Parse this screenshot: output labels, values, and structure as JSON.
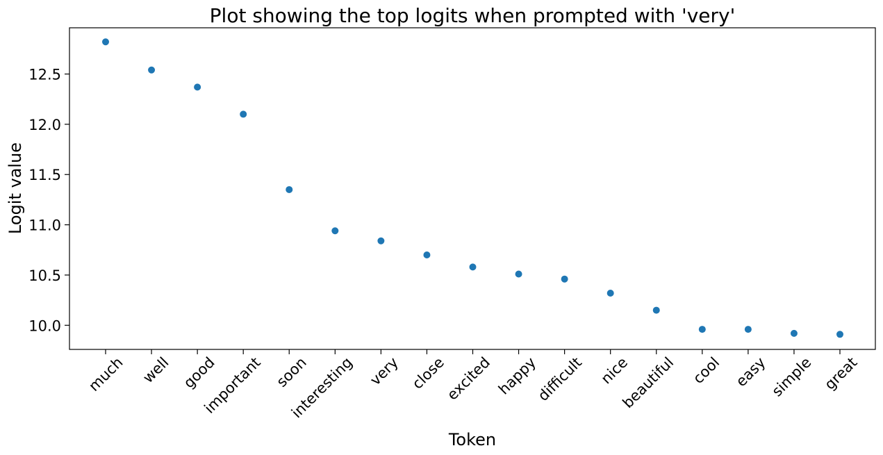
{
  "chart_data": {
    "type": "scatter",
    "title": "Plot showing the top logits when prompted with 'very'",
    "xlabel": "Token",
    "ylabel": "Logit value",
    "categories": [
      "much",
      "well",
      "good",
      "important",
      "soon",
      "interesting",
      "very",
      "close",
      "excited",
      "happy",
      "difficult",
      "nice",
      "beautiful",
      "cool",
      "easy",
      "simple",
      "great"
    ],
    "series": [
      {
        "values": [
          12.82,
          12.54,
          12.37,
          12.1,
          11.35,
          10.94,
          10.84,
          10.7,
          10.58,
          10.51,
          10.46,
          10.32,
          10.15,
          9.96,
          9.96,
          9.92,
          9.91
        ]
      }
    ],
    "ylim": [
      9.76,
      12.96
    ],
    "yticks": [
      "10.0",
      "10.5",
      "11.0",
      "11.5",
      "12.0",
      "12.5"
    ],
    "grid": false,
    "colors": {
      "marker": "#1f77b4",
      "axes": "#000000"
    }
  }
}
